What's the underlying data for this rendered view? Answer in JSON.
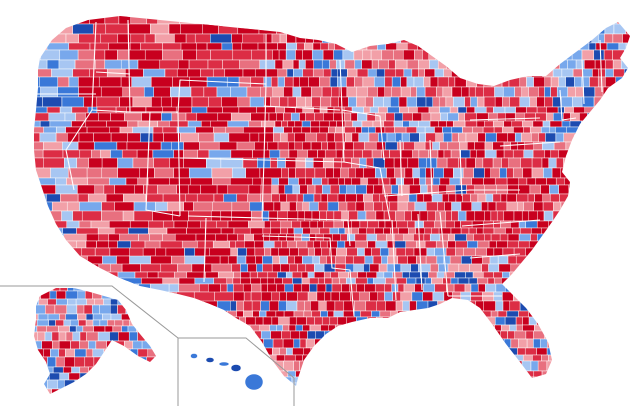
{
  "map": {
    "palette": {
      "r1": "#c8001e",
      "r2": "#dc2d45",
      "r3": "#e8707f",
      "r4": "#f2a0a8",
      "d4": "#a7c6f2",
      "d3": "#78a8ec",
      "d2": "#3a78d8",
      "d1": "#1c4bb0"
    },
    "background_color": "#ffffff",
    "border_color": "#ffffff",
    "inset_frame_color": "#9a9a9a",
    "regions": [
      "contiguous-united-states",
      "alaska-inset",
      "hawaii-inset"
    ],
    "region_bias": {
      "pacific-coast": "d",
      "intermountain-west": "r",
      "great-plains": "r",
      "texas": "r",
      "upper-midwest": "mixed",
      "appalachia": "r",
      "deep-south-belt": "mixed",
      "northeast": "d",
      "florida": "r",
      "alaska": "mixed",
      "hawaii": "d"
    }
  }
}
